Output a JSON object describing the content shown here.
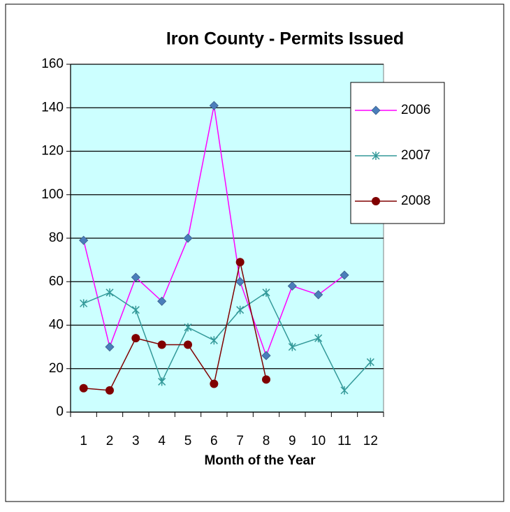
{
  "chart_data": {
    "type": "line",
    "title": "Iron County - Permits Issued",
    "x_label": "Month of the Year",
    "categories": [
      "1",
      "2",
      "3",
      "4",
      "5",
      "6",
      "7",
      "8",
      "9",
      "10",
      "11",
      "12"
    ],
    "series": [
      {
        "name": "2006",
        "color": "#ff00ff",
        "marker": "diamond",
        "marker_color": "#4a7ebb",
        "values": [
          79,
          30,
          62,
          51,
          80,
          141,
          60,
          26,
          58,
          54,
          63,
          null
        ]
      },
      {
        "name": "2007",
        "color": "#339999",
        "marker": "asterisk",
        "marker_color": "#339999",
        "values": [
          50,
          55,
          47,
          14,
          39,
          33,
          47,
          55,
          30,
          34,
          10,
          23
        ]
      },
      {
        "name": "2008",
        "color": "#800000",
        "marker": "circle",
        "marker_color": "#800000",
        "values": [
          11,
          10,
          34,
          31,
          31,
          13,
          69,
          15,
          null,
          null,
          null,
          null
        ]
      }
    ],
    "ylim": [
      0,
      160
    ],
    "yticks": [
      0,
      20,
      40,
      60,
      80,
      100,
      120,
      140,
      160
    ],
    "grid": true,
    "legend": "right",
    "plot_background": "#ccffff"
  }
}
